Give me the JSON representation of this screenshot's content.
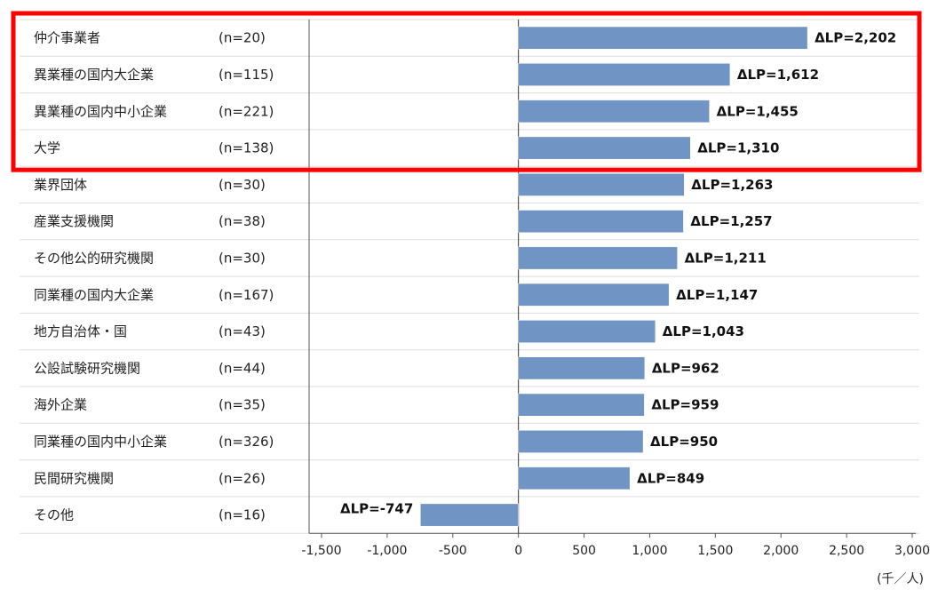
{
  "chart_data": {
    "type": "bar",
    "orientation": "horizontal",
    "title": "",
    "xlabel": "",
    "ylabel": "",
    "unit": "(千／人)",
    "xlim": [
      -1500,
      3000
    ],
    "xticks": [
      "-1,500",
      "-1,000",
      "-500",
      "0",
      "500",
      "1,000",
      "1,500",
      "2,000",
      "2,500",
      "3,000"
    ],
    "xtick_values": [
      -1500,
      -1000,
      -500,
      0,
      500,
      1000,
      1500,
      2000,
      2500,
      3000
    ],
    "bar_color": "#7094c4",
    "highlight_color": "#ff0000",
    "highlighted_rows": 4,
    "rows": [
      {
        "category": "仲介事業者",
        "n": "(n=20)",
        "value": 2202,
        "label": "ΔLP=2,202"
      },
      {
        "category": "異業種の国内大企業",
        "n": "(n=115)",
        "value": 1612,
        "label": "ΔLP=1,612"
      },
      {
        "category": "異業種の国内中小企業",
        "n": "(n=221)",
        "value": 1455,
        "label": "ΔLP=1,455"
      },
      {
        "category": "大学",
        "n": "(n=138)",
        "value": 1310,
        "label": "ΔLP=1,310"
      },
      {
        "category": "業界団体",
        "n": "(n=30)",
        "value": 1263,
        "label": "ΔLP=1,263"
      },
      {
        "category": "産業支援機関",
        "n": "(n=38)",
        "value": 1257,
        "label": "ΔLP=1,257"
      },
      {
        "category": "その他公的研究機関",
        "n": "(n=30)",
        "value": 1211,
        "label": "ΔLP=1,211"
      },
      {
        "category": "同業種の国内大企業",
        "n": "(n=167)",
        "value": 1147,
        "label": "ΔLP=1,147"
      },
      {
        "category": "地方自治体・国",
        "n": "(n=43)",
        "value": 1043,
        "label": "ΔLP=1,043"
      },
      {
        "category": "公設試験研究機関",
        "n": "(n=44)",
        "value": 962,
        "label": "ΔLP=962"
      },
      {
        "category": "海外企業",
        "n": "(n=35)",
        "value": 959,
        "label": "ΔLP=959"
      },
      {
        "category": "同業種の国内中小企業",
        "n": "(n=326)",
        "value": 950,
        "label": "ΔLP=950"
      },
      {
        "category": "民間研究機関",
        "n": "(n=26)",
        "value": 849,
        "label": "ΔLP=849"
      },
      {
        "category": "その他",
        "n": "(n=16)",
        "value": -747,
        "label": "ΔLP=-747"
      }
    ]
  }
}
